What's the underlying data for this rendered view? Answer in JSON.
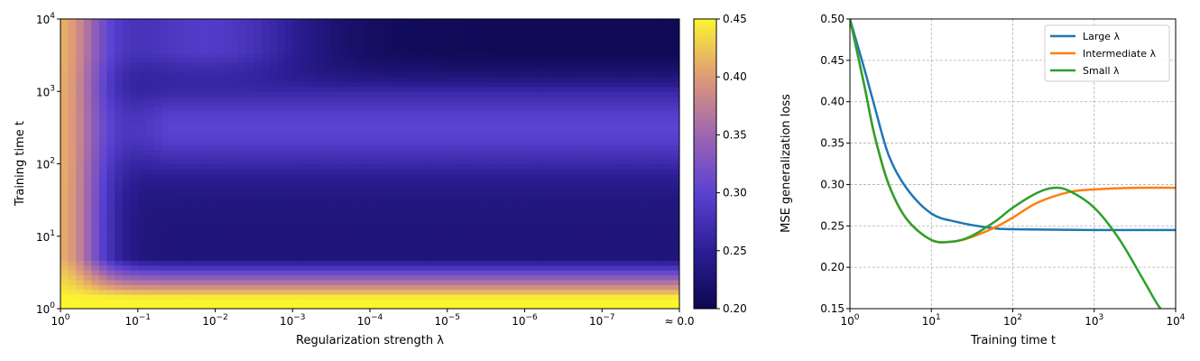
{
  "chart_data": [
    {
      "type": "heatmap",
      "xlabel": "Regularization strength λ",
      "ylabel": "Training time t",
      "x_ticks": [
        {
          "base": "10",
          "exp": "0"
        },
        {
          "base": "10",
          "exp": "−1"
        },
        {
          "base": "10",
          "exp": "−2"
        },
        {
          "base": "10",
          "exp": "−3"
        },
        {
          "base": "10",
          "exp": "−4"
        },
        {
          "base": "10",
          "exp": "−5"
        },
        {
          "base": "10",
          "exp": "−6"
        },
        {
          "base": "10",
          "exp": "−7"
        },
        {
          "base": "≈ 0.0",
          "exp": ""
        }
      ],
      "y_ticks": [
        {
          "base": "10",
          "exp": "0"
        },
        {
          "base": "10",
          "exp": "1"
        },
        {
          "base": "10",
          "exp": "2"
        },
        {
          "base": "10",
          "exp": "3"
        },
        {
          "base": "10",
          "exp": "4"
        }
      ],
      "x_log10_range": [
        0,
        -8
      ],
      "y_log10_range": [
        0,
        4
      ],
      "colorbar": {
        "range": [
          0.2,
          0.45
        ],
        "ticks": [
          "0.20",
          "0.25",
          "0.30",
          "0.35",
          "0.40",
          "0.45"
        ],
        "colormap": [
          "#0d0850",
          "#2d1e95",
          "#5a42d2",
          "#9e66b0",
          "#de9a78",
          "#fbf530"
        ]
      }
    },
    {
      "type": "line",
      "xlabel": "Training time t",
      "ylabel": "MSE generalization loss",
      "x_log10_range": [
        0,
        4
      ],
      "ylim": [
        0.15,
        0.5
      ],
      "x_ticks": [
        {
          "base": "10",
          "exp": "0"
        },
        {
          "base": "10",
          "exp": "1"
        },
        {
          "base": "10",
          "exp": "2"
        },
        {
          "base": "10",
          "exp": "3"
        },
        {
          "base": "10",
          "exp": "4"
        }
      ],
      "y_ticks": [
        "0.15",
        "0.20",
        "0.25",
        "0.30",
        "0.35",
        "0.40",
        "0.45",
        "0.50"
      ],
      "grid": true,
      "legend_position": "top-right",
      "series": [
        {
          "name": "Large λ",
          "color": "#1f77b4",
          "points": [
            [
              1,
              0.5
            ],
            [
              1.5,
              0.44
            ],
            [
              2,
              0.395
            ],
            [
              3,
              0.335
            ],
            [
              5,
              0.295
            ],
            [
              10,
              0.265
            ],
            [
              20,
              0.255
            ],
            [
              50,
              0.248
            ],
            [
              100,
              0.246
            ],
            [
              1000,
              0.245
            ],
            [
              10000,
              0.245
            ]
          ]
        },
        {
          "name": "Intermediate λ",
          "color": "#ff7f0e",
          "points": [
            [
              1,
              0.5
            ],
            [
              1.5,
              0.42
            ],
            [
              2,
              0.36
            ],
            [
              3,
              0.3
            ],
            [
              5,
              0.258
            ],
            [
              10,
              0.233
            ],
            [
              18,
              0.231
            ],
            [
              30,
              0.236
            ],
            [
              60,
              0.248
            ],
            [
              100,
              0.26
            ],
            [
              200,
              0.278
            ],
            [
              500,
              0.291
            ],
            [
              1000,
              0.294
            ],
            [
              3000,
              0.296
            ],
            [
              10000,
              0.296
            ]
          ]
        },
        {
          "name": "Small λ",
          "color": "#2ca02c",
          "points": [
            [
              1,
              0.5
            ],
            [
              1.5,
              0.42
            ],
            [
              2,
              0.36
            ],
            [
              3,
              0.3
            ],
            [
              5,
              0.258
            ],
            [
              10,
              0.233
            ],
            [
              18,
              0.231
            ],
            [
              30,
              0.237
            ],
            [
              60,
              0.255
            ],
            [
              100,
              0.272
            ],
            [
              200,
              0.29
            ],
            [
              320,
              0.296
            ],
            [
              500,
              0.292
            ],
            [
              1000,
              0.272
            ],
            [
              2000,
              0.235
            ],
            [
              4000,
              0.185
            ],
            [
              6000,
              0.155
            ],
            [
              8000,
              0.14
            ],
            [
              10000,
              0.13
            ]
          ]
        }
      ]
    }
  ]
}
